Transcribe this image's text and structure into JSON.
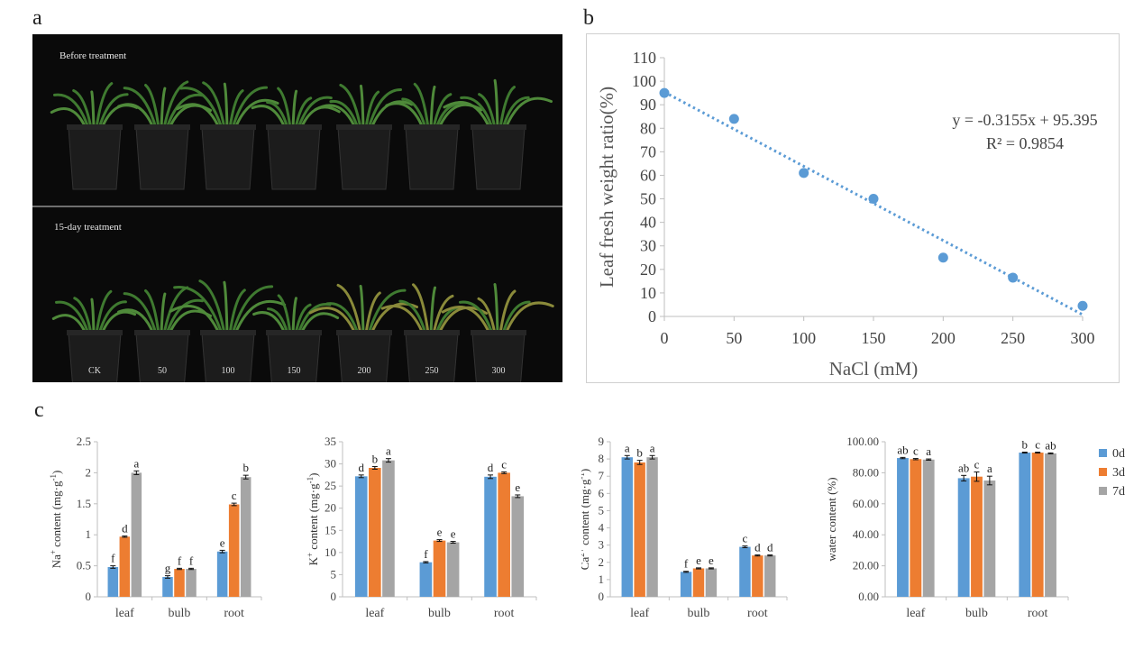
{
  "panels": {
    "a": "a",
    "b": "b",
    "c": "c"
  },
  "photo": {
    "top_caption": "Before treatment",
    "bottom_caption": "15-day treatment",
    "pot_labels": [
      "CK",
      "50",
      "100",
      "150",
      "200",
      "250",
      "300"
    ]
  },
  "chart_data": [
    {
      "id": "b",
      "type": "scatter",
      "title": "",
      "xlabel": "NaCl (mM)",
      "ylabel": "Leaf fresh weight ratio(%)",
      "x": [
        0,
        50,
        100,
        150,
        200,
        250,
        300
      ],
      "y": [
        95,
        84,
        61,
        50,
        25,
        16.5,
        4.5
      ],
      "xticks": [
        "0",
        "50",
        "100",
        "150",
        "200",
        "250",
        "300"
      ],
      "yticks": [
        "0",
        "10",
        "20",
        "30",
        "40",
        "50",
        "60",
        "70",
        "80",
        "90",
        "100",
        "110"
      ],
      "xlim": [
        0,
        300
      ],
      "ylim": [
        0,
        110
      ],
      "trendline": {
        "slope": -0.3155,
        "intercept": 95.395
      },
      "equation": "y = -0.3155x + 95.395",
      "r2": "R² = 0.9854",
      "color": "#5b9bd5"
    },
    {
      "id": "na",
      "type": "bar",
      "ylabel_main": "Na",
      "ylabel_sup": "+",
      "ylabel_rest": " content (mg·g",
      "ylabel_sup2": "-1",
      "ylabel_end": ")",
      "categories": [
        "leaf",
        "bulb",
        "root"
      ],
      "ylim": [
        0,
        2.5
      ],
      "yticks": [
        "0",
        "0.5",
        "1",
        "1.5",
        "2",
        "2.5"
      ],
      "series": [
        {
          "name": "0d",
          "values": [
            0.48,
            0.32,
            0.73
          ],
          "errors": [
            0.02,
            0.02,
            0.02
          ],
          "letters": [
            "f",
            "g",
            "e"
          ]
        },
        {
          "name": "3d",
          "values": [
            0.97,
            0.45,
            1.49
          ],
          "errors": [
            0.01,
            0.01,
            0.02
          ],
          "letters": [
            "d",
            "f",
            "c"
          ]
        },
        {
          "name": "7d",
          "values": [
            2.0,
            0.45,
            1.93
          ],
          "errors": [
            0.03,
            0.01,
            0.03
          ],
          "letters": [
            "a",
            "f",
            "b"
          ]
        }
      ]
    },
    {
      "id": "k",
      "type": "bar",
      "ylabel_main": "K",
      "ylabel_sup": "+",
      "ylabel_rest": " content (mg·g",
      "ylabel_sup2": "-1",
      "ylabel_end": ")",
      "categories": [
        "leaf",
        "bulb",
        "root"
      ],
      "ylim": [
        0,
        35
      ],
      "yticks": [
        "0",
        "5",
        "10",
        "15",
        "20",
        "25",
        "30",
        "35"
      ],
      "series": [
        {
          "name": "0d",
          "values": [
            27.2,
            7.8,
            27.1
          ],
          "errors": [
            0.3,
            0.15,
            0.4
          ],
          "letters": [
            "d",
            "f",
            "d"
          ]
        },
        {
          "name": "3d",
          "values": [
            29.1,
            12.7,
            28.0
          ],
          "errors": [
            0.3,
            0.2,
            0.2
          ],
          "letters": [
            "b",
            "e",
            "c"
          ]
        },
        {
          "name": "7d",
          "values": [
            30.8,
            12.3,
            22.7
          ],
          "errors": [
            0.4,
            0.2,
            0.3
          ],
          "letters": [
            "a",
            "e",
            "e"
          ]
        }
      ]
    },
    {
      "id": "ca",
      "type": "bar",
      "ylabel_main": "Ca",
      "ylabel_sup": "2+",
      "ylabel_rest": " content (mg·g",
      "ylabel_sup2": "-1",
      "ylabel_end": ")",
      "categories": [
        "leaf",
        "bulb",
        "root"
      ],
      "ylim": [
        0,
        9
      ],
      "yticks": [
        "0",
        "1",
        "2",
        "3",
        "4",
        "5",
        "6",
        "7",
        "8",
        "9"
      ],
      "series": [
        {
          "name": "0d",
          "values": [
            8.1,
            1.45,
            2.9
          ],
          "errors": [
            0.1,
            0.03,
            0.05
          ],
          "letters": [
            "a",
            "f",
            "c"
          ]
        },
        {
          "name": "3d",
          "values": [
            7.8,
            1.65,
            2.4
          ],
          "errors": [
            0.12,
            0.03,
            0.03
          ],
          "letters": [
            "b",
            "e",
            "d"
          ]
        },
        {
          "name": "7d",
          "values": [
            8.1,
            1.65,
            2.4
          ],
          "errors": [
            0.1,
            0.03,
            0.03
          ],
          "letters": [
            "a",
            "e",
            "d"
          ]
        }
      ]
    },
    {
      "id": "water",
      "type": "bar",
      "ylabel_main": "water content (%)",
      "ylabel_sup": "",
      "ylabel_rest": "",
      "ylabel_sup2": "",
      "ylabel_end": "",
      "categories": [
        "leaf",
        "bulb",
        "root"
      ],
      "ylim": [
        0,
        100
      ],
      "yticks": [
        "0.00",
        "20.00",
        "40.00",
        "60.00",
        "80.00",
        "100.00"
      ],
      "series": [
        {
          "name": "0d",
          "values": [
            89.5,
            76.5,
            93.0
          ],
          "errors": [
            0.4,
            1.8,
            0.3
          ],
          "letters": [
            "ab",
            "ab",
            "b"
          ]
        },
        {
          "name": "3d",
          "values": [
            88.8,
            77.5,
            93.0
          ],
          "errors": [
            0.4,
            3.0,
            0.3
          ],
          "letters": [
            "c",
            "c",
            "c"
          ]
        },
        {
          "name": "7d",
          "values": [
            88.5,
            75.0,
            92.5
          ],
          "errors": [
            0.4,
            2.8,
            0.3
          ],
          "letters": [
            "a",
            "a",
            "ab"
          ]
        }
      ],
      "legend": [
        "0d",
        "3d",
        "7d"
      ]
    }
  ],
  "colors": {
    "s0": "#5b9bd5",
    "s1": "#ed7d31",
    "s2": "#a5a5a5",
    "axis": "#bfbfbf"
  }
}
